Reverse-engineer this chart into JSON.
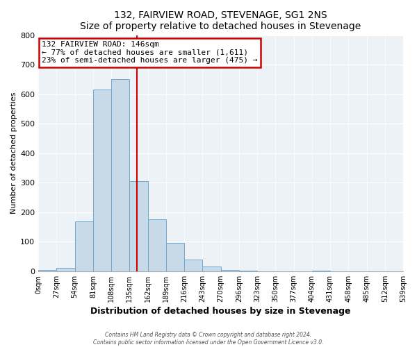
{
  "title": "132, FAIRVIEW ROAD, STEVENAGE, SG1 2NS",
  "subtitle": "Size of property relative to detached houses in Stevenage",
  "xlabel": "Distribution of detached houses by size in Stevenage",
  "ylabel": "Number of detached properties",
  "bar_color": "#c8d9e8",
  "bar_edge_color": "#6aaad4",
  "background_color": "#edf2f7",
  "bin_edges": [
    0,
    27,
    54,
    81,
    108,
    135,
    162,
    189,
    216,
    243,
    270,
    297,
    324,
    351,
    378,
    405,
    432,
    459,
    486,
    513,
    540
  ],
  "bin_labels": [
    "0sqm",
    "27sqm",
    "54sqm",
    "81sqm",
    "108sqm",
    "135sqm",
    "162sqm",
    "189sqm",
    "216sqm",
    "243sqm",
    "270sqm",
    "296sqm",
    "323sqm",
    "350sqm",
    "377sqm",
    "404sqm",
    "431sqm",
    "458sqm",
    "485sqm",
    "512sqm",
    "539sqm"
  ],
  "counts": [
    5,
    12,
    170,
    615,
    650,
    305,
    175,
    97,
    40,
    15,
    5,
    2,
    0,
    0,
    0,
    2,
    0,
    0,
    0,
    0
  ],
  "vline_x": 146,
  "vline_color": "#cc0000",
  "annotation_line1": "132 FAIRVIEW ROAD: 146sqm",
  "annotation_line2": "← 77% of detached houses are smaller (1,611)",
  "annotation_line3": "23% of semi-detached houses are larger (475) →",
  "annotation_box_color": "#cc0000",
  "ylim": [
    0,
    800
  ],
  "yticks": [
    0,
    100,
    200,
    300,
    400,
    500,
    600,
    700,
    800
  ],
  "footer_line1": "Contains HM Land Registry data © Crown copyright and database right 2024.",
  "footer_line2": "Contains public sector information licensed under the Open Government Licence v3.0."
}
